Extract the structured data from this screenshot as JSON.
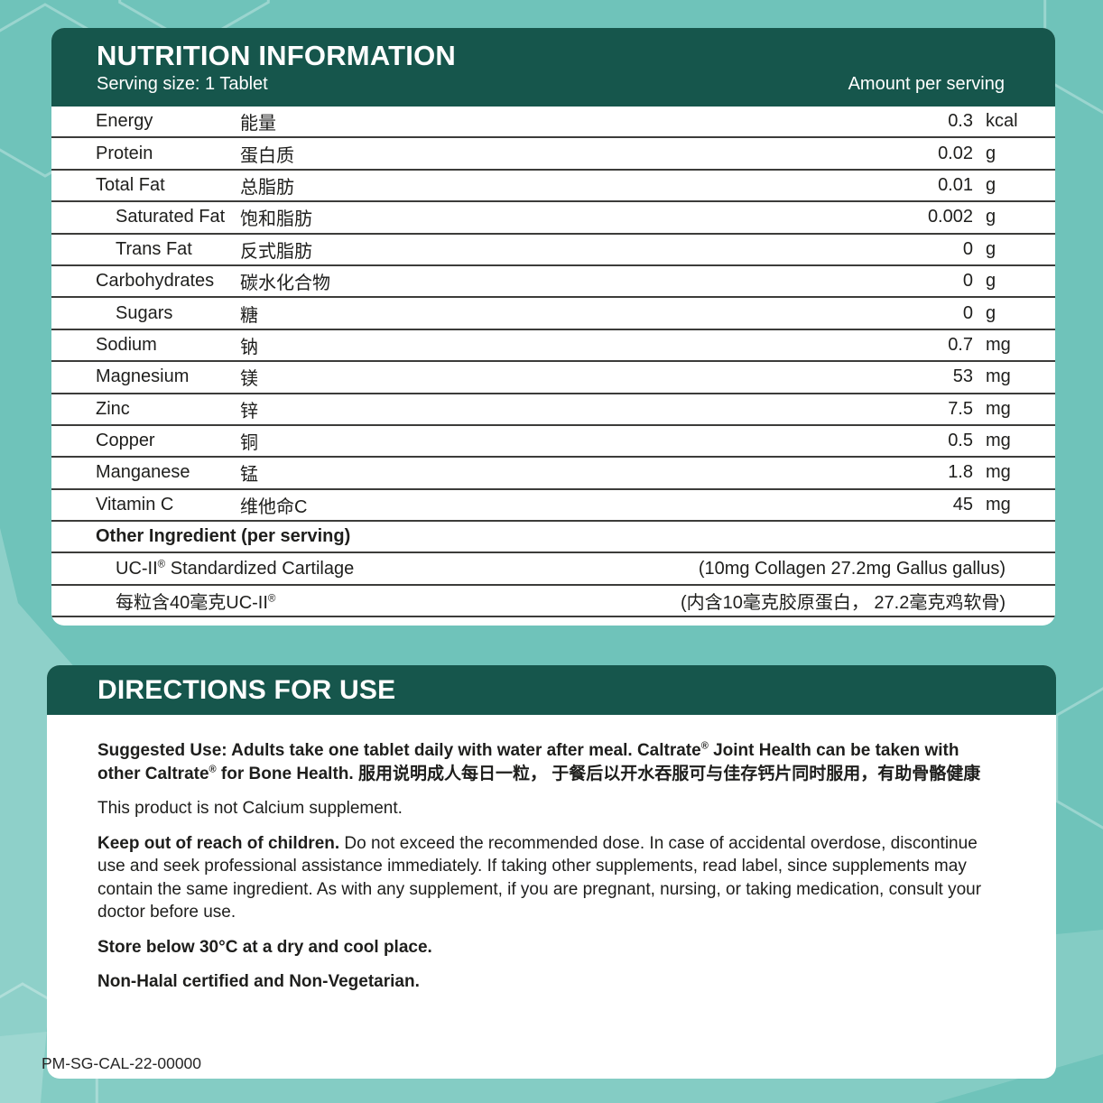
{
  "colors": {
    "background": "#6fc3ba",
    "panel_header_teal": "#16564c",
    "divider": "#3c3c3a",
    "text": "#1e1e1c",
    "hex_outline": "#9bd8d0"
  },
  "nutrition": {
    "title": "NUTRITION INFORMATION",
    "serving_size": "Serving size: 1 Tablet",
    "amount_header": "Amount per serving",
    "rows": [
      {
        "en": "Energy",
        "zh": "能量",
        "value": "0.3",
        "unit": "kcal",
        "indent": false
      },
      {
        "en": "Protein",
        "zh": "蛋白质",
        "value": "0.02",
        "unit": "g",
        "indent": false
      },
      {
        "en": "Total Fat",
        "zh": "总脂肪",
        "value": "0.01",
        "unit": "g",
        "indent": false
      },
      {
        "en": "Saturated Fat",
        "zh": "饱和脂肪",
        "value": "0.002",
        "unit": "g",
        "indent": true
      },
      {
        "en": "Trans Fat",
        "zh": "反式脂肪",
        "value": "0",
        "unit": "g",
        "indent": true
      },
      {
        "en": "Carbohydrates",
        "zh": "碳水化合物",
        "value": "0",
        "unit": "g",
        "indent": false
      },
      {
        "en": "Sugars",
        "zh": "糖",
        "value": "0",
        "unit": "g",
        "indent": true
      },
      {
        "en": "Sodium",
        "zh": "钠",
        "value": "0.7",
        "unit": "mg",
        "indent": false
      },
      {
        "en": "Magnesium",
        "zh": "镁",
        "value": "53",
        "unit": "mg",
        "indent": false
      },
      {
        "en": "Zinc",
        "zh": "锌",
        "value": "7.5",
        "unit": "mg",
        "indent": false
      },
      {
        "en": "Copper",
        "zh": "铜",
        "value": "0.5",
        "unit": "mg",
        "indent": false
      },
      {
        "en": "Manganese",
        "zh": "锰",
        "value": "1.8",
        "unit": "mg",
        "indent": false
      },
      {
        "en": "Vitamin C",
        "zh": "维他命C",
        "value": "45",
        "unit": "mg",
        "indent": false
      }
    ],
    "other_ingredient_header": "Other Ingredient (per serving)",
    "other_rows": [
      {
        "left": "UC-II® Standardized Cartilage",
        "right": "(10mg Collagen 27.2mg Gallus gallus)"
      },
      {
        "left": "每粒含40毫克UC-II®",
        "right": "(内含10毫克胶原蛋白， 27.2毫克鸡软骨)"
      }
    ]
  },
  "directions": {
    "title": "DIRECTIONS FOR USE",
    "suggested_use": "Suggested Use: Adults take one tablet daily with water after meal. Caltrate® Joint Health can be taken with other Caltrate® for Bone Health. 服用说明成人每日一粒， 于餐后以开水吞服可与佳存钙片同时服用，有助骨骼健康",
    "not_calcium": "This product is not Calcium supplement.",
    "warning_lead": "Keep out of reach of children.",
    "warning_rest": " Do not exceed the recommended dose. In case of accidental overdose, discontinue use and seek professional assistance immediately. If taking other supplements, read label, since supplements may contain the same ingredient. As with any supplement, if you are pregnant, nursing, or taking medication, consult your doctor before use.",
    "storage": "Store below 30°C at a dry and cool place.",
    "halal": "Non-Halal certified and Non-Vegetarian."
  },
  "footer_code": "PM-SG-CAL-22-00000"
}
